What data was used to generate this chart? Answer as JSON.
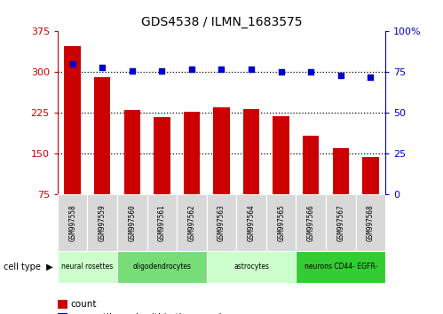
{
  "title": "GDS4538 / ILMN_1683575",
  "samples": [
    "GSM997558",
    "GSM997559",
    "GSM997560",
    "GSM997561",
    "GSM997562",
    "GSM997563",
    "GSM997564",
    "GSM997565",
    "GSM997566",
    "GSM997567",
    "GSM997568"
  ],
  "counts": [
    348,
    291,
    231,
    218,
    228,
    235,
    233,
    220,
    183,
    160,
    145
  ],
  "percentiles": [
    80,
    78,
    76,
    76,
    77,
    77,
    77,
    75,
    75,
    73,
    72
  ],
  "cell_types": [
    {
      "label": "neural rosettes",
      "start": 0,
      "end": 2,
      "color": "#ccffcc"
    },
    {
      "label": "oligodendrocytes",
      "start": 2,
      "end": 5,
      "color": "#77dd77"
    },
    {
      "label": "astrocytes",
      "start": 5,
      "end": 8,
      "color": "#ccffcc"
    },
    {
      "label": "neurons CD44- EGFR-",
      "start": 8,
      "end": 11,
      "color": "#33cc33"
    }
  ],
  "left_ylim": [
    75,
    375
  ],
  "left_yticks": [
    75,
    150,
    225,
    300,
    375
  ],
  "right_ylim": [
    0,
    100
  ],
  "right_yticks": [
    0,
    25,
    50,
    75,
    100
  ],
  "bar_color": "#cc0000",
  "scatter_color": "#0000cc",
  "dotted_color": "#000000",
  "bg_color": "#ffffff",
  "left_tick_color": "#cc0000",
  "right_tick_color": "#0000cc",
  "sample_box_color": "#d8d8d8",
  "legend_count_color": "#cc0000",
  "legend_pct_color": "#0000cc"
}
